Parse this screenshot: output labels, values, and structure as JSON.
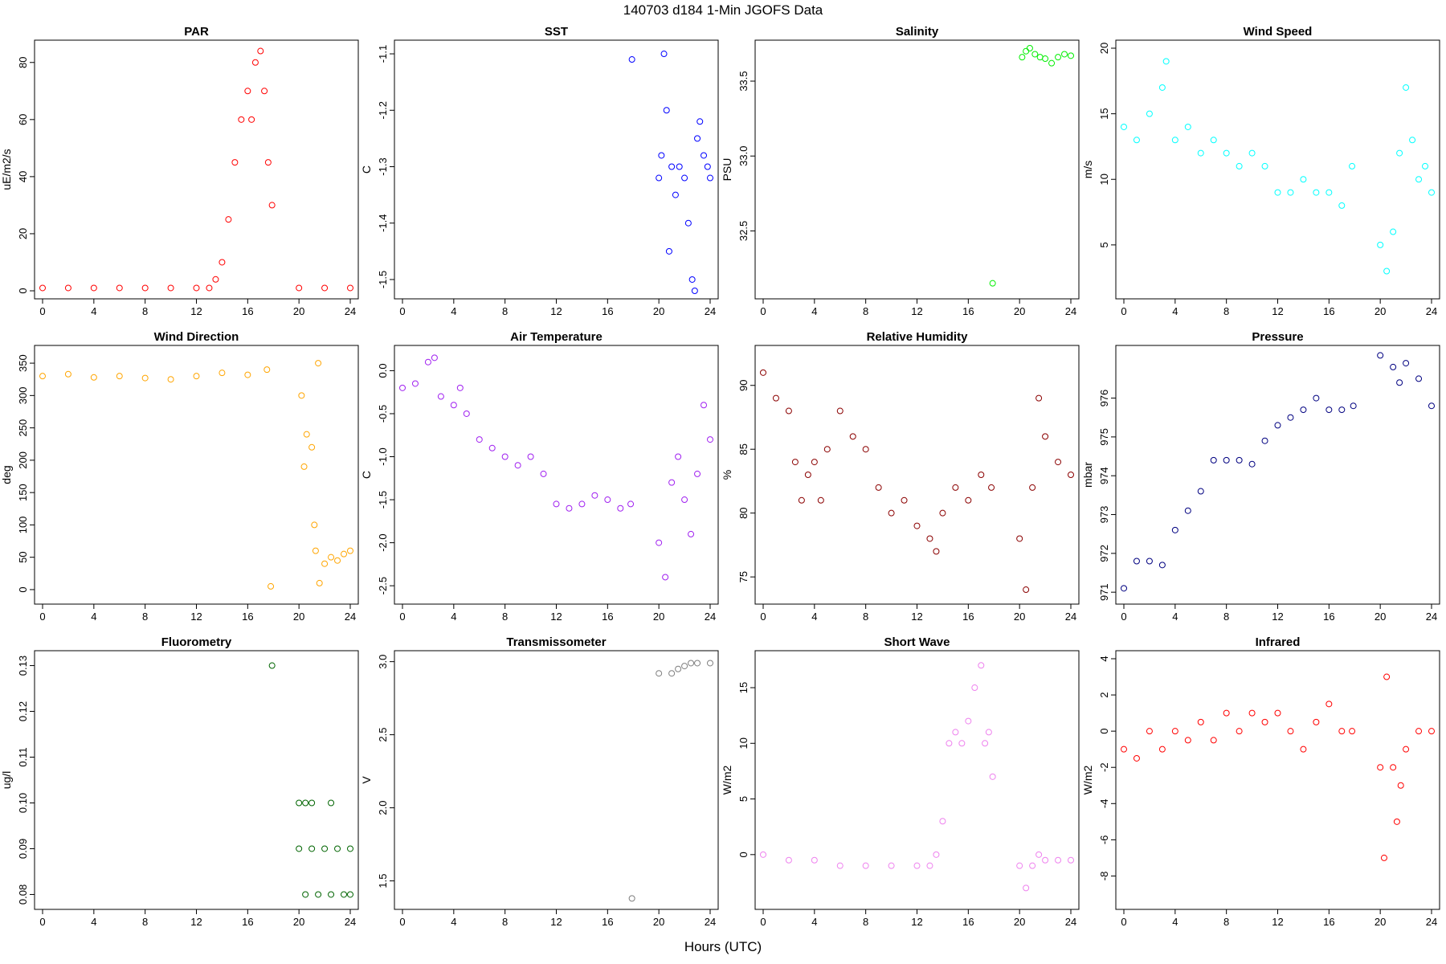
{
  "figure": {
    "title": "140703   d184   1-Min  JGOFS Data",
    "xlabel": "Hours (UTC)"
  },
  "chart_data": [
    {
      "type": "scatter",
      "title": "PAR",
      "ylabel": "uE/m2/s",
      "color": "#ff0000",
      "xlim": [
        0,
        24
      ],
      "ylim": [
        0,
        85
      ],
      "xticks": [
        0,
        4,
        8,
        12,
        16,
        20,
        24
      ],
      "yticks": [
        0,
        20,
        40,
        60,
        80
      ],
      "ytick_labels": [
        "0",
        "20",
        "40",
        "60",
        "80"
      ],
      "points": [
        [
          0,
          1
        ],
        [
          2,
          1
        ],
        [
          4,
          1
        ],
        [
          6,
          1
        ],
        [
          8,
          1
        ],
        [
          10,
          1
        ],
        [
          12,
          1
        ],
        [
          13,
          1
        ],
        [
          13.5,
          4
        ],
        [
          14,
          10
        ],
        [
          14.5,
          25
        ],
        [
          15,
          45
        ],
        [
          15.5,
          60
        ],
        [
          16,
          70
        ],
        [
          16.3,
          60
        ],
        [
          16.6,
          80
        ],
        [
          17,
          84
        ],
        [
          17.3,
          70
        ],
        [
          17.6,
          45
        ],
        [
          17.9,
          30
        ],
        [
          20,
          1
        ],
        [
          22,
          1
        ],
        [
          24,
          1
        ]
      ]
    },
    {
      "type": "scatter",
      "title": "SST",
      "ylabel": "C",
      "color": "#0000ff",
      "xlim": [
        0,
        24
      ],
      "ylim": [
        -1.52,
        -1.09
      ],
      "xticks": [
        0,
        4,
        8,
        12,
        16,
        20,
        24
      ],
      "yticks": [
        -1.1,
        -1.2,
        -1.3,
        -1.4,
        -1.5
      ],
      "ytick_labels": [
        "-1.1",
        "-1.2",
        "-1.3",
        "-1.4",
        "-1.5"
      ],
      "points": [
        [
          17.9,
          -1.11
        ],
        [
          20,
          -1.32
        ],
        [
          20.2,
          -1.28
        ],
        [
          20.4,
          -1.1
        ],
        [
          20.6,
          -1.2
        ],
        [
          20.8,
          -1.45
        ],
        [
          21,
          -1.3
        ],
        [
          21.3,
          -1.35
        ],
        [
          21.6,
          -1.3
        ],
        [
          22,
          -1.32
        ],
        [
          22.3,
          -1.4
        ],
        [
          22.6,
          -1.5
        ],
        [
          22.8,
          -1.52
        ],
        [
          23,
          -1.25
        ],
        [
          23.2,
          -1.22
        ],
        [
          23.5,
          -1.28
        ],
        [
          23.8,
          -1.3
        ],
        [
          24,
          -1.32
        ]
      ]
    },
    {
      "type": "scatter",
      "title": "Salinity",
      "ylabel": "PSU",
      "color": "#00ee00",
      "xlim": [
        0,
        24
      ],
      "ylim": [
        32.1,
        33.72
      ],
      "xticks": [
        0,
        4,
        8,
        12,
        16,
        20,
        24
      ],
      "yticks": [
        32.5,
        33.0,
        33.5
      ],
      "ytick_labels": [
        "32.5",
        "33.0",
        "33.5"
      ],
      "points": [
        [
          17.9,
          32.15
        ],
        [
          20.2,
          33.66
        ],
        [
          20.5,
          33.7
        ],
        [
          20.8,
          33.72
        ],
        [
          21.2,
          33.68
        ],
        [
          21.6,
          33.66
        ],
        [
          22,
          33.65
        ],
        [
          22.5,
          33.62
        ],
        [
          23,
          33.66
        ],
        [
          23.5,
          33.68
        ],
        [
          24,
          33.67
        ]
      ]
    },
    {
      "type": "scatter",
      "title": "Wind Speed",
      "ylabel": "m/s",
      "color": "#00ffff",
      "xlim": [
        0,
        24
      ],
      "ylim": [
        1.5,
        20
      ],
      "xticks": [
        0,
        4,
        8,
        12,
        16,
        20,
        24
      ],
      "yticks": [
        5,
        10,
        15,
        20
      ],
      "ytick_labels": [
        "5",
        "10",
        "15",
        "20"
      ],
      "points": [
        [
          0,
          14
        ],
        [
          1,
          13
        ],
        [
          2,
          15
        ],
        [
          3,
          17
        ],
        [
          3.3,
          19
        ],
        [
          4,
          13
        ],
        [
          5,
          14
        ],
        [
          6,
          12
        ],
        [
          7,
          13
        ],
        [
          8,
          12
        ],
        [
          9,
          11
        ],
        [
          10,
          12
        ],
        [
          11,
          11
        ],
        [
          12,
          9
        ],
        [
          13,
          9
        ],
        [
          14,
          10
        ],
        [
          15,
          9
        ],
        [
          16,
          9
        ],
        [
          17,
          8
        ],
        [
          17.8,
          11
        ],
        [
          20,
          5
        ],
        [
          20.5,
          3
        ],
        [
          21,
          6
        ],
        [
          21.5,
          12
        ],
        [
          22,
          17
        ],
        [
          22.5,
          13
        ],
        [
          23,
          10
        ],
        [
          23.5,
          11
        ],
        [
          24,
          9
        ]
      ]
    },
    {
      "type": "scatter",
      "title": "Wind Direction",
      "ylabel": "deg",
      "color": "#ffa500",
      "xlim": [
        0,
        24
      ],
      "ylim": [
        -10,
        365
      ],
      "xticks": [
        0,
        4,
        8,
        12,
        16,
        20,
        24
      ],
      "yticks": [
        0,
        50,
        100,
        150,
        200,
        250,
        300,
        350
      ],
      "ytick_labels": [
        "0",
        "50",
        "100",
        "150",
        "200",
        "250",
        "300",
        "350"
      ],
      "points": [
        [
          0,
          330
        ],
        [
          2,
          333
        ],
        [
          4,
          328
        ],
        [
          6,
          330
        ],
        [
          8,
          327
        ],
        [
          10,
          325
        ],
        [
          12,
          330
        ],
        [
          14,
          335
        ],
        [
          16,
          332
        ],
        [
          17.5,
          340
        ],
        [
          17.8,
          5
        ],
        [
          20.2,
          300
        ],
        [
          20.4,
          190
        ],
        [
          20.6,
          240
        ],
        [
          21,
          220
        ],
        [
          21.2,
          100
        ],
        [
          21.3,
          60
        ],
        [
          21.5,
          350
        ],
        [
          21.6,
          10
        ],
        [
          22,
          40
        ],
        [
          22.5,
          50
        ],
        [
          23,
          45
        ],
        [
          23.5,
          55
        ],
        [
          24,
          60
        ]
      ]
    },
    {
      "type": "scatter",
      "title": "Air Temperature",
      "ylabel": "C",
      "color": "#a020f0",
      "xlim": [
        0,
        24
      ],
      "ylim": [
        -2.62,
        0.2
      ],
      "xticks": [
        0,
        4,
        8,
        12,
        16,
        20,
        24
      ],
      "yticks": [
        0,
        -0.5,
        -1.0,
        -1.5,
        -2.0,
        -2.5
      ],
      "ytick_labels": [
        "0.0",
        "-0.5",
        "-1.0",
        "-1.5",
        "-2.0",
        "-2.5"
      ],
      "points": [
        [
          0,
          -0.2
        ],
        [
          1,
          -0.15
        ],
        [
          2,
          0.1
        ],
        [
          2.5,
          0.15
        ],
        [
          3,
          -0.3
        ],
        [
          4,
          -0.4
        ],
        [
          4.5,
          -0.2
        ],
        [
          5,
          -0.5
        ],
        [
          6,
          -0.8
        ],
        [
          7,
          -0.9
        ],
        [
          8,
          -1.0
        ],
        [
          9,
          -1.1
        ],
        [
          10,
          -1.0
        ],
        [
          11,
          -1.2
        ],
        [
          12,
          -1.55
        ],
        [
          13,
          -1.6
        ],
        [
          14,
          -1.55
        ],
        [
          15,
          -1.45
        ],
        [
          16,
          -1.5
        ],
        [
          17,
          -1.6
        ],
        [
          17.8,
          -1.55
        ],
        [
          20,
          -2.0
        ],
        [
          20.5,
          -2.4
        ],
        [
          21,
          -1.3
        ],
        [
          21.5,
          -1.0
        ],
        [
          22,
          -1.5
        ],
        [
          22.5,
          -1.9
        ],
        [
          23,
          -1.2
        ],
        [
          23.5,
          -0.4
        ],
        [
          24,
          -0.8
        ]
      ]
    },
    {
      "type": "scatter",
      "title": "Relative Humidity",
      "ylabel": "%",
      "color": "#8b0000",
      "xlim": [
        0,
        24
      ],
      "ylim": [
        73.5,
        92.5
      ],
      "xticks": [
        0,
        4,
        8,
        12,
        16,
        20,
        24
      ],
      "yticks": [
        75,
        80,
        85,
        90
      ],
      "ytick_labels": [
        "75",
        "80",
        "85",
        "90"
      ],
      "points": [
        [
          0,
          91
        ],
        [
          1,
          89
        ],
        [
          2,
          88
        ],
        [
          2.5,
          84
        ],
        [
          3,
          81
        ],
        [
          3.5,
          83
        ],
        [
          4,
          84
        ],
        [
          4.5,
          81
        ],
        [
          5,
          85
        ],
        [
          6,
          88
        ],
        [
          7,
          86
        ],
        [
          8,
          85
        ],
        [
          9,
          82
        ],
        [
          10,
          80
        ],
        [
          11,
          81
        ],
        [
          12,
          79
        ],
        [
          13,
          78
        ],
        [
          13.5,
          77
        ],
        [
          14,
          80
        ],
        [
          15,
          82
        ],
        [
          16,
          81
        ],
        [
          17,
          83
        ],
        [
          17.8,
          82
        ],
        [
          20,
          78
        ],
        [
          20.5,
          74
        ],
        [
          21,
          82
        ],
        [
          21.5,
          89
        ],
        [
          22,
          86
        ],
        [
          23,
          84
        ],
        [
          24,
          83
        ]
      ]
    },
    {
      "type": "scatter",
      "title": "Pressure",
      "ylabel": "mbar",
      "color": "#000080",
      "xlim": [
        0,
        24
      ],
      "ylim": [
        970.9,
        977.15
      ],
      "xticks": [
        0,
        4,
        8,
        12,
        16,
        20,
        24
      ],
      "yticks": [
        971,
        972,
        973,
        974,
        975,
        976
      ],
      "ytick_labels": [
        "971",
        "972",
        "973",
        "974",
        "975",
        "976"
      ],
      "points": [
        [
          0,
          971.1
        ],
        [
          1,
          971.8
        ],
        [
          2,
          971.8
        ],
        [
          3,
          971.7
        ],
        [
          4,
          972.6
        ],
        [
          5,
          973.1
        ],
        [
          6,
          973.6
        ],
        [
          7,
          974.4
        ],
        [
          8,
          974.4
        ],
        [
          9,
          974.4
        ],
        [
          10,
          974.3
        ],
        [
          11,
          974.9
        ],
        [
          12,
          975.3
        ],
        [
          13,
          975.5
        ],
        [
          14,
          975.7
        ],
        [
          15,
          976.0
        ],
        [
          16,
          975.7
        ],
        [
          17,
          975.7
        ],
        [
          17.9,
          975.8
        ],
        [
          20,
          977.1
        ],
        [
          21,
          976.8
        ],
        [
          21.5,
          976.4
        ],
        [
          22,
          976.9
        ],
        [
          23,
          976.5
        ],
        [
          24,
          975.8
        ]
      ]
    },
    {
      "type": "scatter",
      "title": "Fluorometry",
      "ylabel": "ug/l",
      "color": "#006400",
      "xlim": [
        0,
        24
      ],
      "ylim": [
        0.0785,
        0.1315
      ],
      "xticks": [
        0,
        4,
        8,
        12,
        16,
        20,
        24
      ],
      "yticks": [
        0.08,
        0.09,
        0.1,
        0.11,
        0.12,
        0.13
      ],
      "ytick_labels": [
        "0.08",
        "0.09",
        "0.10",
        "0.11",
        "0.12",
        "0.13"
      ],
      "points": [
        [
          17.9,
          0.13
        ],
        [
          20,
          0.1
        ],
        [
          20.5,
          0.1
        ],
        [
          21,
          0.1
        ],
        [
          22.5,
          0.1
        ],
        [
          20,
          0.09
        ],
        [
          21,
          0.09
        ],
        [
          22,
          0.09
        ],
        [
          23,
          0.09
        ],
        [
          24,
          0.09
        ],
        [
          20.5,
          0.08
        ],
        [
          21.5,
          0.08
        ],
        [
          22.5,
          0.08
        ],
        [
          23.5,
          0.08
        ],
        [
          24,
          0.08
        ]
      ]
    },
    {
      "type": "scatter",
      "title": "Transmissometer",
      "ylabel": "V",
      "color": "#7f7f7f",
      "xlim": [
        0,
        24
      ],
      "ylim": [
        1.36,
        3.02
      ],
      "xticks": [
        0,
        4,
        8,
        12,
        16,
        20,
        24
      ],
      "yticks": [
        1.5,
        2.0,
        2.5,
        3.0
      ],
      "ytick_labels": [
        "1.5",
        "2.0",
        "2.5",
        "3.0"
      ],
      "points": [
        [
          17.9,
          1.38
        ],
        [
          20,
          2.92
        ],
        [
          21,
          2.92
        ],
        [
          21.5,
          2.95
        ],
        [
          22,
          2.97
        ],
        [
          22.5,
          2.99
        ],
        [
          23,
          2.99
        ],
        [
          24,
          2.99
        ]
      ]
    },
    {
      "type": "scatter",
      "title": "Short Wave",
      "ylabel": "W/m2",
      "color": "#ee82ee",
      "xlim": [
        0,
        24
      ],
      "ylim": [
        -4.2,
        17.6
      ],
      "xticks": [
        0,
        4,
        8,
        12,
        16,
        20,
        24
      ],
      "yticks": [
        0,
        5,
        10,
        15
      ],
      "ytick_labels": [
        "0",
        "5",
        "10",
        "15"
      ],
      "points": [
        [
          0,
          0
        ],
        [
          2,
          -0.5
        ],
        [
          4,
          -0.5
        ],
        [
          6,
          -1
        ],
        [
          8,
          -1
        ],
        [
          10,
          -1
        ],
        [
          12,
          -1
        ],
        [
          13,
          -1
        ],
        [
          13.5,
          0
        ],
        [
          14,
          3
        ],
        [
          14.5,
          10
        ],
        [
          15,
          11
        ],
        [
          15.5,
          10
        ],
        [
          16,
          12
        ],
        [
          16.5,
          15
        ],
        [
          17,
          17
        ],
        [
          17.3,
          10
        ],
        [
          17.6,
          11
        ],
        [
          17.9,
          7
        ],
        [
          20,
          -1
        ],
        [
          20.5,
          -3
        ],
        [
          21,
          -1
        ],
        [
          21.5,
          0
        ],
        [
          22,
          -0.5
        ],
        [
          23,
          -0.5
        ],
        [
          24,
          -0.5
        ]
      ]
    },
    {
      "type": "scatter",
      "title": "Infrared",
      "ylabel": "W/m2",
      "color": "#ff0000",
      "xlim": [
        0,
        24
      ],
      "ylim": [
        -9.4,
        4
      ],
      "xticks": [
        0,
        4,
        8,
        12,
        16,
        20,
        24
      ],
      "yticks": [
        4,
        2,
        0,
        -2,
        -4,
        -6,
        -8
      ],
      "ytick_labels": [
        "4",
        "2",
        "0",
        "-2",
        "-4",
        "-6",
        "-8"
      ],
      "points": [
        [
          0,
          -1
        ],
        [
          1,
          -1.5
        ],
        [
          2,
          0
        ],
        [
          3,
          -1
        ],
        [
          4,
          0
        ],
        [
          5,
          -0.5
        ],
        [
          6,
          0.5
        ],
        [
          7,
          -0.5
        ],
        [
          8,
          1
        ],
        [
          9,
          0
        ],
        [
          10,
          1
        ],
        [
          11,
          0.5
        ],
        [
          12,
          1
        ],
        [
          13,
          0
        ],
        [
          14,
          -1
        ],
        [
          15,
          0.5
        ],
        [
          16,
          1.5
        ],
        [
          17,
          0
        ],
        [
          17.8,
          0
        ],
        [
          20,
          -2
        ],
        [
          20.3,
          -7
        ],
        [
          20.5,
          3
        ],
        [
          21,
          -2
        ],
        [
          21.3,
          -5
        ],
        [
          21.6,
          -3
        ],
        [
          22,
          -1
        ],
        [
          23,
          0
        ],
        [
          24,
          0
        ]
      ]
    }
  ]
}
